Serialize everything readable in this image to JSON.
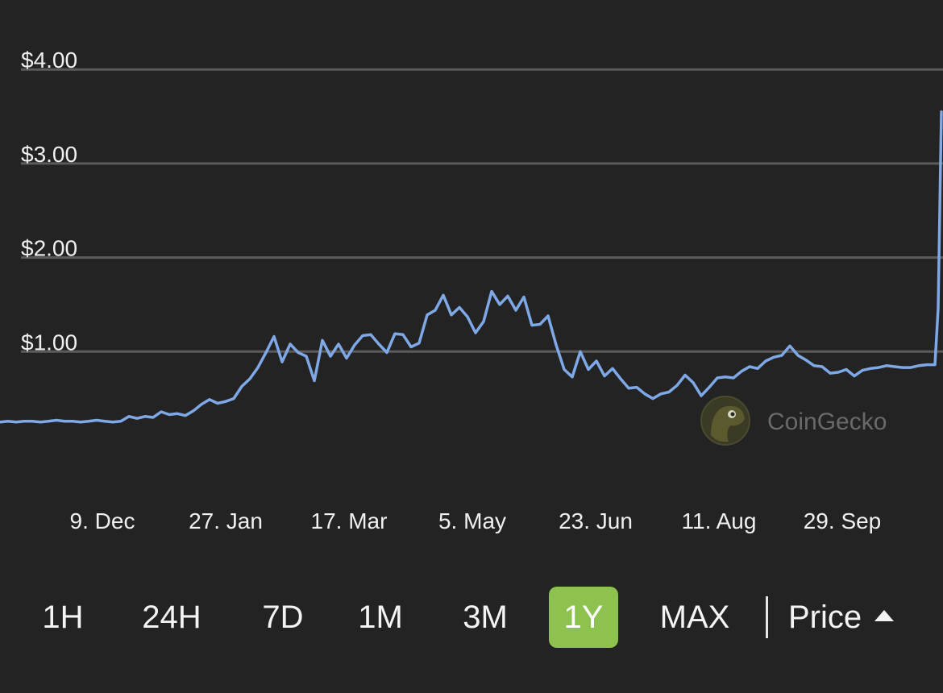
{
  "chart_data": {
    "type": "line",
    "title": "",
    "xlabel": "",
    "ylabel": "",
    "y_tick_labels": [
      "$1.00",
      "$2.00",
      "$3.00",
      "$4.00"
    ],
    "y_ticks": [
      1,
      2,
      3,
      4
    ],
    "x_tick_labels": [
      "9. Dec",
      "27. Jan",
      "17. Mar",
      "5. May",
      "23. Jun",
      "11. Aug",
      "29. Sep"
    ],
    "ylim": [
      0,
      4.3
    ],
    "grid": true,
    "legend": "none",
    "series": [
      {
        "values": [
          0.25,
          0.26,
          0.25,
          0.26,
          0.26,
          0.25,
          0.26,
          0.27,
          0.26,
          0.26,
          0.25,
          0.26,
          0.27,
          0.26,
          0.25,
          0.26,
          0.31,
          0.29,
          0.31,
          0.3,
          0.36,
          0.33,
          0.34,
          0.32,
          0.37,
          0.44,
          0.49,
          0.45,
          0.47,
          0.5,
          0.63,
          0.71,
          0.83,
          0.99,
          1.16,
          0.89,
          1.08,
          0.99,
          0.95,
          0.69,
          1.12,
          0.95,
          1.08,
          0.93,
          1.07,
          1.17,
          1.18,
          1.08,
          0.99,
          1.19,
          1.18,
          1.05,
          1.09,
          1.39,
          1.44,
          1.6,
          1.39,
          1.47,
          1.37,
          1.2,
          1.32,
          1.64,
          1.5,
          1.59,
          1.44,
          1.58,
          1.28,
          1.29,
          1.38,
          1.07,
          0.81,
          0.73,
          1.0,
          0.81,
          0.9,
          0.74,
          0.82,
          0.71,
          0.61,
          0.62,
          0.55,
          0.5,
          0.55,
          0.57,
          0.64,
          0.75,
          0.67,
          0.53,
          0.62,
          0.72,
          0.73,
          0.72,
          0.79,
          0.84,
          0.82,
          0.9,
          0.94,
          0.96,
          1.06,
          0.96,
          0.91,
          0.85,
          0.84,
          0.77,
          0.78,
          0.81,
          0.74,
          0.8,
          0.82,
          0.83,
          0.85,
          0.84,
          0.83,
          0.83,
          0.85,
          0.86,
          0.86,
          1.46,
          3.55
        ]
      }
    ]
  },
  "watermark": {
    "text": "CoinGecko"
  },
  "controls": {
    "ranges": [
      "1H",
      "24H",
      "7D",
      "1M",
      "3M",
      "1Y",
      "MAX"
    ],
    "active_range": "1Y",
    "price_label": "Price"
  },
  "colors": {
    "background": "#232323",
    "line": "#7fa8e6",
    "grid": "#5b5b5b",
    "active_button": "#8dc24f"
  }
}
